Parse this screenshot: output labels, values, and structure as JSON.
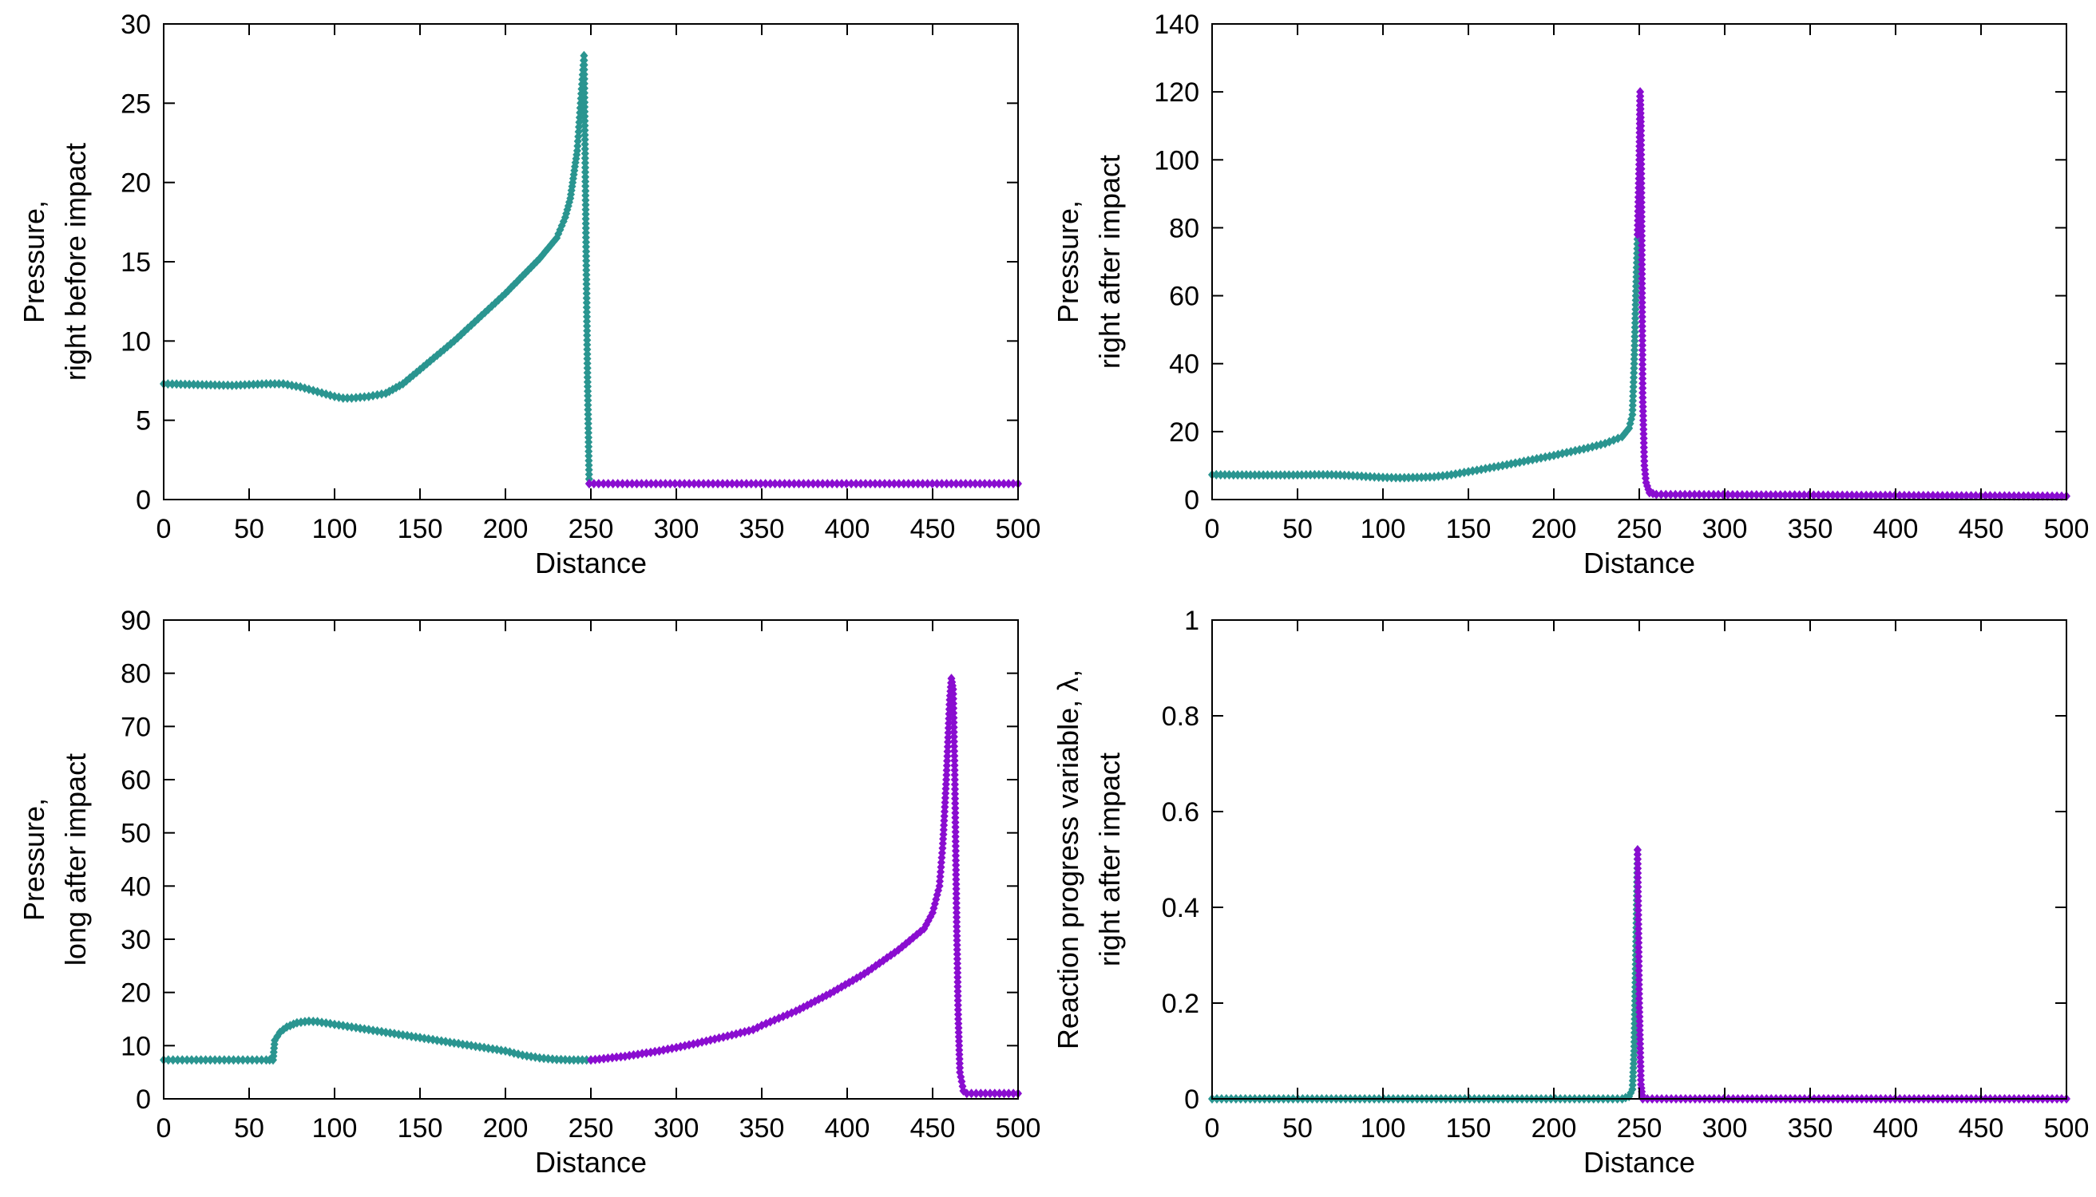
{
  "colors": {
    "teal": "#2a9590",
    "purple": "#8a0dd0",
    "axis": "#000000"
  },
  "chart_data": [
    {
      "id": "before",
      "type": "line",
      "xlabel": "Distance",
      "ylabel_lines": [
        "Pressure,",
        "right before impact"
      ],
      "xlim": [
        0,
        500
      ],
      "ylim": [
        0,
        30
      ],
      "xticks": [
        0,
        50,
        100,
        150,
        200,
        250,
        300,
        350,
        400,
        450,
        500
      ],
      "yticks": [
        0,
        5,
        10,
        15,
        20,
        25,
        30
      ],
      "xtick_labels": [
        "0",
        "50",
        "100",
        "150",
        "200",
        "250",
        "300",
        "350",
        "400",
        "450",
        "500"
      ],
      "ytick_labels": [
        "0",
        "5",
        "10",
        "15",
        "20",
        "25",
        "30"
      ],
      "series": [
        {
          "name": "teal",
          "color_key": "teal",
          "x": [
            0,
            20,
            40,
            60,
            70,
            80,
            90,
            100,
            105,
            110,
            120,
            130,
            140,
            150,
            160,
            170,
            180,
            190,
            200,
            210,
            220,
            230,
            235,
            238,
            240,
            242,
            243,
            244,
            245,
            246,
            247,
            248,
            249
          ],
          "y": [
            7.3,
            7.25,
            7.2,
            7.3,
            7.3,
            7.1,
            6.8,
            6.5,
            6.4,
            6.4,
            6.5,
            6.7,
            7.3,
            8.2,
            9.1,
            10.0,
            11.0,
            12.0,
            13.0,
            14.1,
            15.2,
            16.5,
            17.8,
            19.0,
            20.5,
            22.0,
            23.5,
            25.0,
            26.5,
            28.0,
            18.0,
            8.0,
            1.0
          ]
        },
        {
          "name": "purple",
          "color_key": "purple",
          "x": [
            249,
            500
          ],
          "y": [
            1.0,
            1.0
          ]
        }
      ]
    },
    {
      "id": "right_after",
      "type": "line",
      "xlabel": "Distance",
      "ylabel_lines": [
        "Pressure,",
        "right after impact"
      ],
      "xlim": [
        0,
        500
      ],
      "ylim": [
        0,
        140
      ],
      "xticks": [
        0,
        50,
        100,
        150,
        200,
        250,
        300,
        350,
        400,
        450,
        500
      ],
      "yticks": [
        0,
        20,
        40,
        60,
        80,
        100,
        120,
        140
      ],
      "xtick_labels": [
        "0",
        "50",
        "100",
        "150",
        "200",
        "250",
        "300",
        "350",
        "400",
        "450",
        "500"
      ],
      "ytick_labels": [
        "0",
        "20",
        "40",
        "60",
        "80",
        "100",
        "120",
        "140"
      ],
      "series": [
        {
          "name": "teal",
          "color_key": "teal",
          "x": [
            0,
            20,
            40,
            60,
            70,
            80,
            90,
            100,
            110,
            120,
            130,
            140,
            150,
            160,
            170,
            180,
            190,
            200,
            210,
            220,
            230,
            240,
            244,
            246,
            247,
            248,
            249
          ],
          "y": [
            7.3,
            7.25,
            7.2,
            7.3,
            7.3,
            7.1,
            6.8,
            6.5,
            6.4,
            6.5,
            6.7,
            7.3,
            8.2,
            9.1,
            10.0,
            11.0,
            12.0,
            13.0,
            14.1,
            15.2,
            16.5,
            18.5,
            21.0,
            25.0,
            40.0,
            60.0,
            78.0
          ]
        },
        {
          "name": "purple",
          "color_key": "purple",
          "x": [
            249,
            250,
            250.5,
            251,
            251.5,
            252,
            253,
            254,
            256,
            260,
            500
          ],
          "y": [
            78.0,
            100.0,
            120.0,
            110.0,
            72.0,
            30.0,
            10.0,
            5.0,
            2.0,
            1.5,
            1.0
          ]
        }
      ]
    },
    {
      "id": "long_after",
      "type": "line",
      "xlabel": "Distance",
      "ylabel_lines": [
        "Pressure,",
        "long after impact"
      ],
      "xlim": [
        0,
        500
      ],
      "ylim": [
        0,
        90
      ],
      "xticks": [
        0,
        50,
        100,
        150,
        200,
        250,
        300,
        350,
        400,
        450,
        500
      ],
      "yticks": [
        0,
        10,
        20,
        30,
        40,
        50,
        60,
        70,
        80,
        90
      ],
      "xtick_labels": [
        "0",
        "50",
        "100",
        "150",
        "200",
        "250",
        "300",
        "350",
        "400",
        "450",
        "500"
      ],
      "ytick_labels": [
        "0",
        "10",
        "20",
        "30",
        "40",
        "50",
        "60",
        "70",
        "80",
        "90"
      ],
      "series": [
        {
          "name": "teal",
          "color_key": "teal",
          "x": [
            0,
            30,
            60,
            64,
            65,
            68,
            72,
            78,
            85,
            90,
            100,
            120,
            140,
            160,
            180,
            200,
            210,
            220,
            230,
            240,
            250
          ],
          "y": [
            7.3,
            7.3,
            7.3,
            7.3,
            11.0,
            12.5,
            13.5,
            14.3,
            14.6,
            14.5,
            14.0,
            13.0,
            12.0,
            11.0,
            10.0,
            9.0,
            8.2,
            7.7,
            7.4,
            7.3,
            7.3
          ]
        },
        {
          "name": "purple",
          "color_key": "purple",
          "x": [
            250,
            270,
            290,
            310,
            330,
            345,
            350,
            370,
            390,
            410,
            430,
            445,
            450,
            454,
            456,
            458,
            460,
            461,
            462,
            463,
            464,
            465,
            466,
            468,
            470,
            500
          ],
          "y": [
            7.3,
            8.0,
            9.0,
            10.3,
            11.8,
            13.0,
            13.8,
            16.5,
            19.8,
            23.5,
            28.0,
            32.0,
            35.0,
            40.0,
            48.0,
            60.0,
            75.0,
            79.0,
            77.0,
            60.0,
            35.0,
            15.0,
            5.0,
            1.5,
            1.0,
            1.0
          ]
        }
      ]
    },
    {
      "id": "lambda",
      "type": "line",
      "xlabel": "Distance",
      "ylabel_lines": [
        "Reaction progress variable, λ,",
        "right after impact"
      ],
      "xlim": [
        0,
        500
      ],
      "ylim": [
        0,
        1
      ],
      "xticks": [
        0,
        50,
        100,
        150,
        200,
        250,
        300,
        350,
        400,
        450,
        500
      ],
      "yticks": [
        0,
        0.2,
        0.4,
        0.6,
        0.8,
        1
      ],
      "xtick_labels": [
        "0",
        "50",
        "100",
        "150",
        "200",
        "250",
        "300",
        "350",
        "400",
        "450",
        "500"
      ],
      "ytick_labels": [
        "0",
        "0.2",
        "0.4",
        "0.6",
        "0.8",
        "1"
      ],
      "series": [
        {
          "name": "teal",
          "color_key": "teal",
          "x": [
            0,
            240,
            244,
            246,
            247,
            248,
            249
          ],
          "y": [
            0,
            0,
            0.005,
            0.02,
            0.1,
            0.3,
            0.52
          ]
        },
        {
          "name": "purple",
          "color_key": "purple",
          "x": [
            249,
            250,
            251,
            252,
            500
          ],
          "y": [
            0.52,
            0.2,
            0.03,
            0,
            0
          ]
        }
      ]
    }
  ]
}
